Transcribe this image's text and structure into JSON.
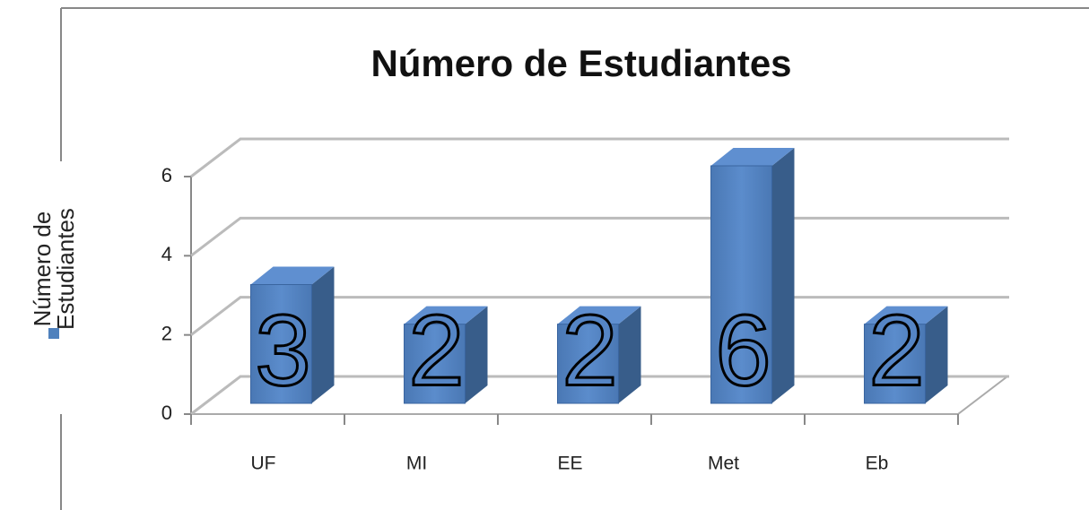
{
  "chart_data": {
    "type": "bar3d",
    "title": "Número de Estudiantes",
    "categories": [
      "UF",
      "MI",
      "EE",
      "Met",
      "Eb"
    ],
    "series": [
      {
        "name": "Número de Estudiantes",
        "color": "#4f81bd",
        "values": [
          3,
          2,
          2,
          6,
          2
        ]
      }
    ],
    "ylim": [
      0,
      6
    ],
    "yticks": [
      0,
      2,
      4,
      6
    ],
    "grid": true,
    "legend": "left",
    "data_labels": true
  }
}
